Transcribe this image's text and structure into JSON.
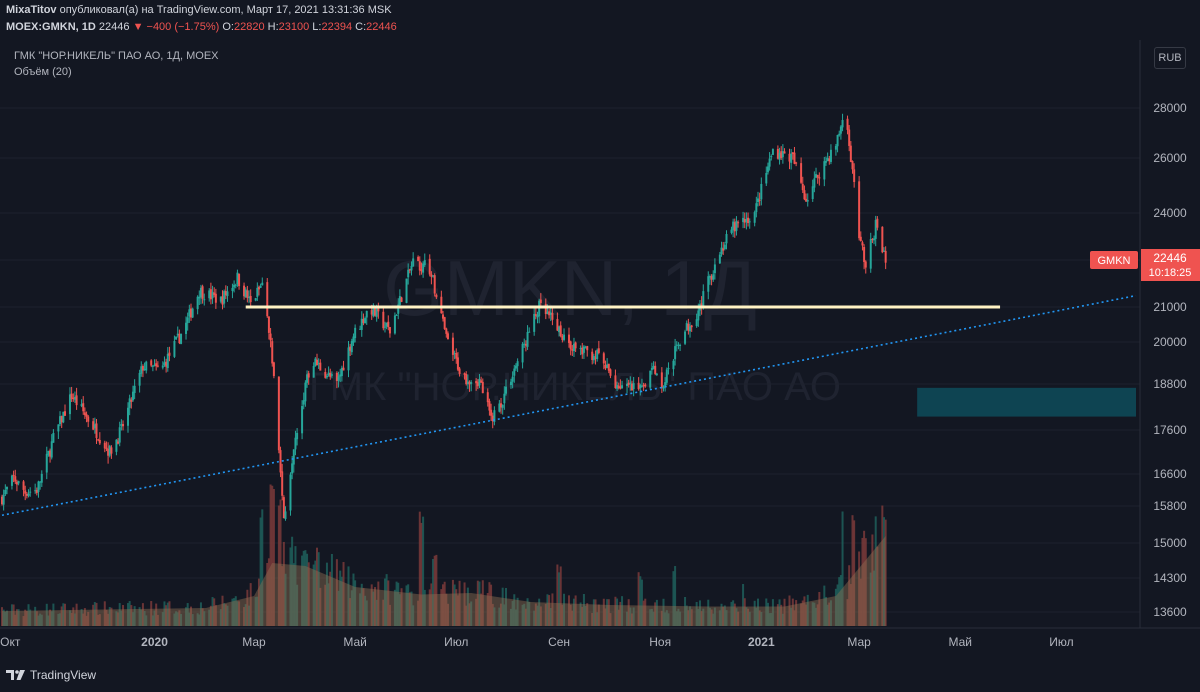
{
  "header": {
    "author": "MixaTitov",
    "published_text": "опубликовал(а) на TradingView.com, Март 17, 2021 13:31:36 MSK",
    "symbol": "MOEX:GMKN, 1D",
    "last": "22446",
    "change": "−400 (−1.75%)",
    "o_label": "O:",
    "o": "22820",
    "h_label": "H:",
    "h": "23100",
    "l_label": "L:",
    "l": "22394",
    "c_label": "C:",
    "c": "22446"
  },
  "legend": {
    "title": "ГМК \"НОР.НИКЕЛЬ\" ПАО АО, 1Д, MOEX",
    "volume": "Объём (20)"
  },
  "currency": "RUB",
  "watermark": {
    "line1": "GMKN, 1Д",
    "line2": "ГМК \"НОР.НИКЕЛЬ\" ПАО АО"
  },
  "price_label": {
    "ticker": "GMKN",
    "price": "22446",
    "countdown": "10:18:25"
  },
  "footer": {
    "brand": "TradingView"
  },
  "colors": {
    "up": "#26a69a",
    "down": "#ef5350",
    "hline": "#fff3c4",
    "trend": "#2196f3",
    "zone": "#0e4452",
    "bg": "#131722"
  },
  "chart_data": {
    "type": "candlestick",
    "y_ticks": [
      28000,
      26000,
      24000,
      22446,
      21000,
      20000,
      18800,
      17600,
      16600,
      15800,
      15000,
      14300,
      13600
    ],
    "x_ticks": [
      "Окт",
      "2020",
      "Мар",
      "Май",
      "Июл",
      "Сен",
      "Ноя",
      "2021",
      "Мар",
      "Май",
      "Июл"
    ],
    "x_range": [
      "2019-10-01",
      "2021-08-15"
    ],
    "last_price": 22446,
    "price_path": [
      [
        "2019-10-01",
        16000
      ],
      [
        "2019-10-08",
        16500
      ],
      [
        "2019-10-15",
        16150
      ],
      [
        "2019-10-22",
        16200
      ],
      [
        "2019-11-01",
        17400
      ],
      [
        "2019-11-12",
        18500
      ],
      [
        "2019-11-25",
        17700
      ],
      [
        "2019-12-05",
        17100
      ],
      [
        "2019-12-12",
        17600
      ],
      [
        "2019-12-25",
        19300
      ],
      [
        "2020-01-05",
        19200
      ],
      [
        "2020-01-20",
        20500
      ],
      [
        "2020-01-28",
        21500
      ],
      [
        "2020-02-10",
        21200
      ],
      [
        "2020-02-20",
        21900
      ],
      [
        "2020-02-28",
        21100
      ],
      [
        "2020-03-06",
        21700
      ],
      [
        "2020-03-12",
        19500
      ],
      [
        "2020-03-16",
        17200
      ],
      [
        "2020-03-19",
        15500
      ],
      [
        "2020-03-25",
        17300
      ],
      [
        "2020-04-05",
        19500
      ],
      [
        "2020-04-20",
        18800
      ],
      [
        "2020-04-30",
        20200
      ],
      [
        "2020-05-10",
        21000
      ],
      [
        "2020-05-22",
        20300
      ],
      [
        "2020-06-05",
        22400
      ],
      [
        "2020-06-15",
        22200
      ],
      [
        "2020-06-25",
        20100
      ],
      [
        "2020-07-05",
        19000
      ],
      [
        "2020-07-15",
        18900
      ],
      [
        "2020-07-22",
        17900
      ],
      [
        "2020-07-28",
        18300
      ],
      [
        "2020-08-10",
        19800
      ],
      [
        "2020-08-20",
        21000
      ],
      [
        "2020-08-30",
        20500
      ],
      [
        "2020-09-10",
        19800
      ],
      [
        "2020-09-25",
        19600
      ],
      [
        "2020-10-05",
        18800
      ],
      [
        "2020-10-20",
        18600
      ],
      [
        "2020-10-28",
        19400
      ],
      [
        "2020-11-02",
        18700
      ],
      [
        "2020-11-12",
        20000
      ],
      [
        "2020-11-25",
        21000
      ],
      [
        "2020-12-05",
        22500
      ],
      [
        "2020-12-15",
        23500
      ],
      [
        "2020-12-28",
        24000
      ],
      [
        "2021-01-08",
        26300
      ],
      [
        "2021-01-20",
        26000
      ],
      [
        "2021-01-28",
        24500
      ],
      [
        "2021-02-05",
        25500
      ],
      [
        "2021-02-15",
        26500
      ],
      [
        "2021-02-20",
        27800
      ],
      [
        "2021-02-25",
        25500
      ],
      [
        "2021-03-01",
        23200
      ],
      [
        "2021-03-05",
        22300
      ],
      [
        "2021-03-11",
        23600
      ],
      [
        "2021-03-17",
        22446
      ]
    ],
    "horizontal_line": {
      "price": 21000,
      "from": "2020-02-25",
      "to": "2021-05-25"
    },
    "trendline": {
      "from": [
        "2019-10-01",
        15600
      ],
      "to": [
        "2021-08-15",
        21350
      ]
    },
    "zone": {
      "from": "2021-04-05",
      "to": "2021-08-15",
      "low": 17950,
      "high": 18700
    },
    "volume": {
      "ma_path": [
        [
          "2019-10-01",
          0.1
        ],
        [
          "2019-12-01",
          0.11
        ],
        [
          "2020-02-01",
          0.12
        ],
        [
          "2020-03-01",
          0.2
        ],
        [
          "2020-03-12",
          0.42
        ],
        [
          "2020-04-01",
          0.4
        ],
        [
          "2020-05-01",
          0.26
        ],
        [
          "2020-06-10",
          0.21
        ],
        [
          "2020-07-10",
          0.22
        ],
        [
          "2020-08-15",
          0.16
        ],
        [
          "2020-10-01",
          0.14
        ],
        [
          "2020-12-01",
          0.13
        ],
        [
          "2021-01-15",
          0.13
        ],
        [
          "2021-02-15",
          0.2
        ],
        [
          "2021-03-17",
          0.6
        ]
      ],
      "spikes": [
        [
          "2020-03-06",
          0.78
        ],
        [
          "2020-03-12",
          1.0
        ],
        [
          "2020-03-16",
          0.85
        ],
        [
          "2020-04-01",
          0.55
        ],
        [
          "2020-06-10",
          0.78
        ],
        [
          "2020-06-18",
          0.48
        ],
        [
          "2020-09-01",
          0.42
        ],
        [
          "2020-10-20",
          0.36
        ],
        [
          "2020-11-09",
          0.42
        ],
        [
          "2020-12-20",
          0.3
        ],
        [
          "2021-02-20",
          0.82
        ],
        [
          "2021-02-26",
          0.74
        ],
        [
          "2021-03-05",
          0.66
        ],
        [
          "2021-03-17",
          0.76
        ]
      ]
    }
  }
}
